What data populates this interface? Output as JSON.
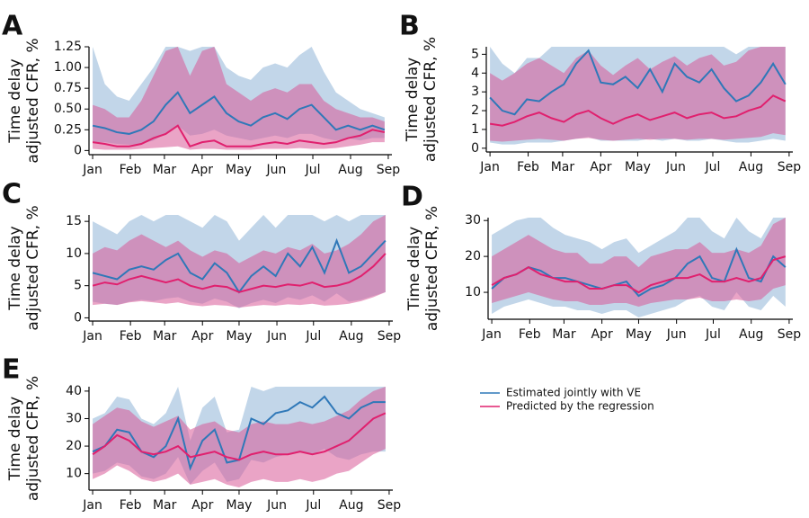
{
  "legend": [
    {
      "name": "Estimated jointly with VE",
      "color": "#2f78b8",
      "band_color": "#c2d6e9"
    },
    {
      "name": "Predicted by the regression",
      "color": "#e0206e",
      "band_color": "#d95a98"
    }
  ],
  "x": [
    0,
    10,
    20,
    30,
    40,
    50,
    60,
    70,
    80,
    90,
    100,
    110,
    120,
    130,
    140,
    150,
    160,
    170,
    180,
    190,
    200,
    210,
    220,
    230,
    240
  ],
  "xlim": [
    -3,
    246
  ],
  "xticks": [
    {
      "value": 0,
      "label": "Jan"
    },
    {
      "value": 31,
      "label": "Feb"
    },
    {
      "value": 59,
      "label": "Mar"
    },
    {
      "value": 90,
      "label": "Apr"
    },
    {
      "value": 120,
      "label": "May"
    },
    {
      "value": 151,
      "label": "Jun"
    },
    {
      "value": 181,
      "label": "Jul"
    },
    {
      "value": 212,
      "label": "Aug"
    },
    {
      "value": 243,
      "label": "Sep"
    }
  ],
  "chart_data": [
    {
      "type": "line",
      "label": "A",
      "ylabel": [
        "Time delay",
        "adjusted CFR, %"
      ],
      "ylim": [
        -0.05,
        1.25
      ],
      "yticks": [
        0,
        0.25,
        {
          "value": 0.5,
          "label": "0.50"
        },
        0.75,
        {
          "value": 1,
          "label": "1.00"
        },
        1.25
      ],
      "series": [
        {
          "values": [
            0.3,
            0.27,
            0.22,
            0.2,
            0.25,
            0.35,
            0.55,
            0.7,
            0.45,
            0.55,
            0.65,
            0.45,
            0.35,
            0.3,
            0.4,
            0.45,
            0.38,
            0.5,
            0.55,
            0.4,
            0.25,
            0.3,
            0.25,
            0.3,
            0.25
          ],
          "lower": [
            0.1,
            0.1,
            0.08,
            0.07,
            0.08,
            0.12,
            0.2,
            0.3,
            0.18,
            0.2,
            0.25,
            0.18,
            0.15,
            0.12,
            0.15,
            0.18,
            0.15,
            0.2,
            0.2,
            0.15,
            0.12,
            0.15,
            0.12,
            0.15,
            0.15
          ],
          "upper": [
            1.25,
            0.8,
            0.65,
            0.6,
            0.8,
            1.0,
            1.25,
            1.25,
            1.2,
            1.25,
            1.25,
            1.0,
            0.9,
            0.85,
            1.0,
            1.05,
            1.0,
            1.15,
            1.25,
            0.95,
            0.7,
            0.6,
            0.5,
            0.45,
            0.4
          ]
        },
        {
          "values": [
            0.1,
            0.08,
            0.05,
            0.05,
            0.08,
            0.15,
            0.2,
            0.3,
            0.05,
            0.1,
            0.12,
            0.05,
            0.05,
            0.05,
            0.08,
            0.1,
            0.08,
            0.12,
            0.1,
            0.08,
            0.1,
            0.15,
            0.18,
            0.25,
            0.22
          ],
          "lower": [
            0.02,
            0.01,
            0.01,
            0.01,
            0.02,
            0.03,
            0.04,
            0.05,
            0.01,
            0.02,
            0.02,
            0.01,
            0.01,
            0.01,
            0.02,
            0.02,
            0.02,
            0.03,
            0.02,
            0.02,
            0.03,
            0.05,
            0.07,
            0.1,
            0.1
          ],
          "upper": [
            0.55,
            0.5,
            0.4,
            0.4,
            0.6,
            0.9,
            1.2,
            1.25,
            0.9,
            1.2,
            1.25,
            0.8,
            0.7,
            0.6,
            0.7,
            0.75,
            0.7,
            0.8,
            0.8,
            0.6,
            0.5,
            0.45,
            0.4,
            0.4,
            0.35
          ]
        }
      ]
    },
    {
      "type": "line",
      "label": "B",
      "ylabel": [
        "Time delay",
        "adjusted CFR, %"
      ],
      "ylim": [
        -0.2,
        5.4
      ],
      "yticks": [
        0,
        1,
        2,
        3,
        4,
        5
      ],
      "series": [
        {
          "values": [
            2.7,
            2.0,
            1.8,
            2.6,
            2.5,
            3.0,
            3.4,
            4.5,
            5.2,
            3.5,
            3.4,
            3.8,
            3.2,
            4.2,
            3.0,
            4.5,
            3.8,
            3.5,
            4.2,
            3.2,
            2.5,
            2.8,
            3.5,
            4.5,
            3.4
          ],
          "lower": [
            0.3,
            0.2,
            0.2,
            0.3,
            0.3,
            0.3,
            0.4,
            0.5,
            0.6,
            0.4,
            0.4,
            0.4,
            0.4,
            0.5,
            0.4,
            0.5,
            0.4,
            0.4,
            0.5,
            0.4,
            0.3,
            0.3,
            0.4,
            0.5,
            0.4
          ],
          "upper": [
            5.4,
            4.5,
            4.0,
            4.8,
            4.8,
            5.4,
            5.4,
            5.4,
            5.4,
            5.4,
            5.4,
            5.4,
            5.4,
            5.4,
            5.4,
            5.4,
            5.4,
            5.4,
            5.4,
            5.4,
            5.0,
            5.4,
            5.4,
            5.4,
            5.4
          ]
        },
        {
          "values": [
            1.3,
            1.2,
            1.4,
            1.7,
            1.9,
            1.6,
            1.4,
            1.8,
            2.0,
            1.6,
            1.3,
            1.6,
            1.8,
            1.5,
            1.7,
            1.9,
            1.6,
            1.8,
            1.9,
            1.6,
            1.7,
            2.0,
            2.2,
            2.8,
            2.5
          ],
          "lower": [
            0.4,
            0.35,
            0.4,
            0.45,
            0.5,
            0.45,
            0.4,
            0.5,
            0.55,
            0.45,
            0.4,
            0.45,
            0.5,
            0.45,
            0.5,
            0.5,
            0.45,
            0.5,
            0.5,
            0.45,
            0.5,
            0.55,
            0.6,
            0.8,
            0.7
          ],
          "upper": [
            4.0,
            3.6,
            4.0,
            4.5,
            4.8,
            4.4,
            4.0,
            4.8,
            5.2,
            4.4,
            3.9,
            4.4,
            4.8,
            4.2,
            4.6,
            4.9,
            4.4,
            4.8,
            5.0,
            4.4,
            4.6,
            5.2,
            5.4,
            5.4,
            5.4
          ]
        }
      ]
    },
    {
      "type": "line",
      "label": "C",
      "ylabel": [
        "Time delay",
        "adjusted CFR, %"
      ],
      "ylim": [
        -0.5,
        16
      ],
      "yticks": [
        0,
        5,
        10,
        15
      ],
      "series": [
        {
          "values": [
            7,
            6.5,
            6,
            7.5,
            8,
            7.5,
            9,
            10,
            7,
            6,
            8.5,
            7,
            4,
            6.5,
            8,
            6.5,
            10,
            8,
            11,
            7,
            12,
            7,
            8,
            10,
            12
          ],
          "lower": [
            2.5,
            2.2,
            2,
            2.5,
            2.8,
            2.6,
            3,
            3.2,
            2.5,
            2.2,
            3,
            2.5,
            1.5,
            2.3,
            2.8,
            2.3,
            3.2,
            2.8,
            3.5,
            2.5,
            3.8,
            2.5,
            2.8,
            3.4,
            4
          ],
          "upper": [
            15,
            14,
            13,
            15,
            16,
            15,
            16,
            16,
            15,
            14,
            16,
            15,
            12,
            14,
            16,
            14,
            16,
            16,
            16,
            15,
            16,
            15,
            16,
            16,
            16
          ]
        },
        {
          "values": [
            5,
            5.5,
            5.2,
            6,
            6.5,
            6,
            5.5,
            6,
            5,
            4.5,
            5,
            4.8,
            4,
            4.5,
            5,
            4.8,
            5.2,
            5,
            5.5,
            4.8,
            5,
            5.5,
            6.5,
            8,
            10
          ],
          "lower": [
            2,
            2.2,
            2,
            2.4,
            2.6,
            2.4,
            2.2,
            2.4,
            2,
            1.8,
            2,
            1.9,
            1.6,
            1.8,
            2,
            1.9,
            2.1,
            2,
            2.2,
            1.9,
            2,
            2.2,
            2.6,
            3.2,
            4
          ],
          "upper": [
            10,
            11,
            10.5,
            12,
            13,
            12,
            11,
            12,
            10.5,
            9.5,
            10.5,
            10,
            8.5,
            9.5,
            10.5,
            10,
            11,
            10.5,
            11.5,
            10,
            10.5,
            11.5,
            13,
            15,
            16
          ]
        }
      ]
    },
    {
      "type": "line",
      "label": "D",
      "ylabel": [
        "Time delay",
        "adjusted CFR, %"
      ],
      "ylim": [
        2.5,
        30.8
      ],
      "yticks": [
        10,
        20,
        30
      ],
      "series": [
        {
          "values": [
            11,
            14,
            15,
            17,
            16,
            14,
            14,
            13,
            12,
            11,
            12,
            13,
            9,
            11,
            12,
            14,
            18,
            20,
            14,
            13,
            22,
            14,
            13,
            20,
            17
          ],
          "lower": [
            4,
            6,
            7,
            8,
            7,
            6,
            6,
            5,
            5,
            4,
            5,
            5,
            3,
            4,
            5,
            6,
            8,
            9,
            6,
            5,
            10,
            6,
            5,
            9,
            6
          ],
          "upper": [
            26,
            28,
            30,
            30.8,
            30.8,
            28,
            26,
            25,
            24,
            22,
            24,
            25,
            21,
            23,
            25,
            27,
            30.8,
            30.8,
            27,
            25,
            30.8,
            27,
            25,
            30.8,
            30.8
          ]
        },
        {
          "values": [
            12,
            14,
            15,
            17,
            15,
            14,
            13,
            13,
            11,
            11,
            12,
            12,
            10,
            12,
            13,
            14,
            14,
            15,
            13,
            13,
            14,
            13,
            14,
            19,
            20
          ],
          "lower": [
            7,
            8,
            9,
            10,
            9,
            8,
            7.5,
            7.5,
            6.5,
            6.5,
            7,
            7,
            6,
            7,
            7.5,
            8,
            8,
            8.5,
            7.5,
            7.5,
            8,
            7.5,
            8,
            11,
            12
          ],
          "upper": [
            20,
            22,
            24,
            26,
            24,
            22,
            21,
            21,
            18,
            18,
            20,
            20,
            17,
            20,
            21,
            22,
            22,
            24,
            21,
            21,
            22,
            21,
            23,
            29,
            30.8
          ]
        }
      ]
    },
    {
      "type": "line",
      "label": "E",
      "ylabel": [
        "Time delay",
        "adjusted CFR, %"
      ],
      "ylim": [
        4,
        41.6
      ],
      "yticks": [
        10,
        20,
        30,
        40
      ],
      "series": [
        {
          "values": [
            18,
            20,
            26,
            25,
            18,
            16,
            20,
            30,
            12,
            22,
            26,
            14,
            15,
            30,
            28,
            32,
            33,
            36,
            34,
            38,
            32,
            30,
            34,
            36,
            36
          ],
          "lower": [
            10,
            11,
            14,
            13,
            9,
            8,
            10,
            16,
            6,
            11,
            14,
            7,
            8,
            15,
            14,
            16,
            17,
            18,
            17,
            19,
            16,
            15,
            17,
            18,
            18
          ],
          "upper": [
            30,
            32,
            38,
            37,
            30,
            28,
            32,
            41.6,
            22,
            34,
            38,
            25,
            26,
            41.6,
            40,
            41.6,
            41.6,
            41.6,
            41.6,
            41.6,
            41.6,
            41.6,
            41.6,
            41.6,
            41.6
          ]
        },
        {
          "values": [
            17,
            20,
            24,
            22,
            18,
            17,
            18,
            20,
            16,
            17,
            18,
            16,
            15,
            17,
            18,
            17,
            17,
            18,
            17,
            18,
            20,
            22,
            26,
            30,
            32
          ],
          "lower": [
            8,
            10,
            13,
            11,
            8,
            7,
            8,
            10,
            6,
            7,
            8,
            6,
            5,
            7,
            8,
            7,
            7,
            8,
            7,
            8,
            10,
            11,
            14,
            17,
            19
          ],
          "upper": [
            28,
            31,
            34,
            33,
            29,
            27,
            29,
            31,
            26,
            28,
            29,
            26,
            25,
            28,
            29,
            28,
            28,
            29,
            28,
            29,
            31,
            33,
            37,
            40,
            41.6
          ]
        }
      ]
    }
  ]
}
